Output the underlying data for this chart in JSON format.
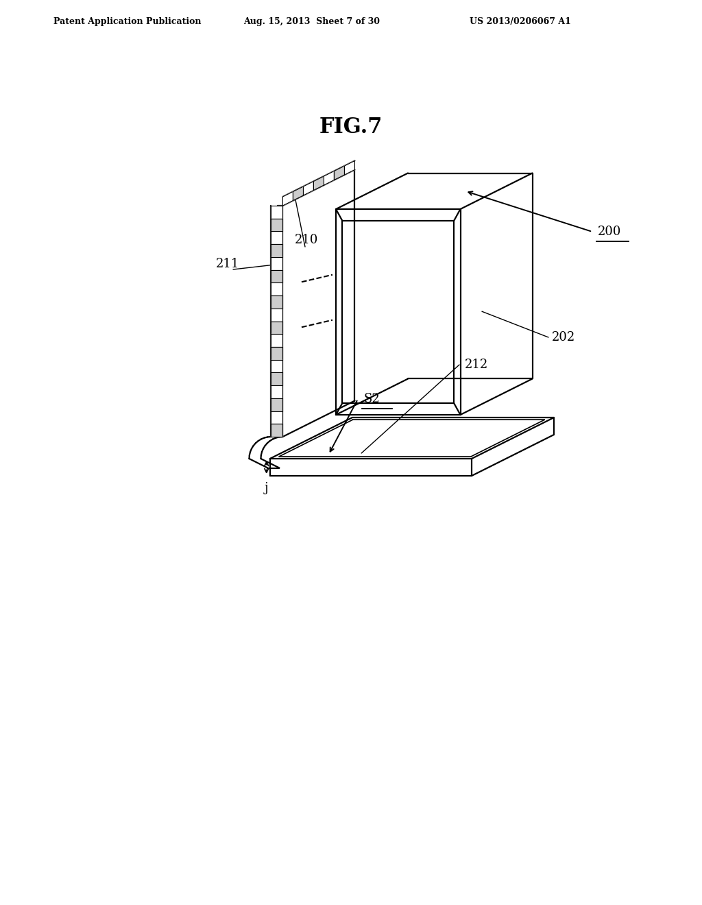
{
  "title": "FIG.7",
  "header_left": "Patent Application Publication",
  "header_mid": "Aug. 15, 2013  Sheet 7 of 30",
  "header_right": "US 2013/0206067 A1",
  "bg_color": "#ffffff",
  "line_color": "#000000",
  "label_200": "200",
  "label_202": "202",
  "label_210": "210",
  "label_211": "211",
  "label_212": "212",
  "label_S2": "S2",
  "label_j": "j"
}
